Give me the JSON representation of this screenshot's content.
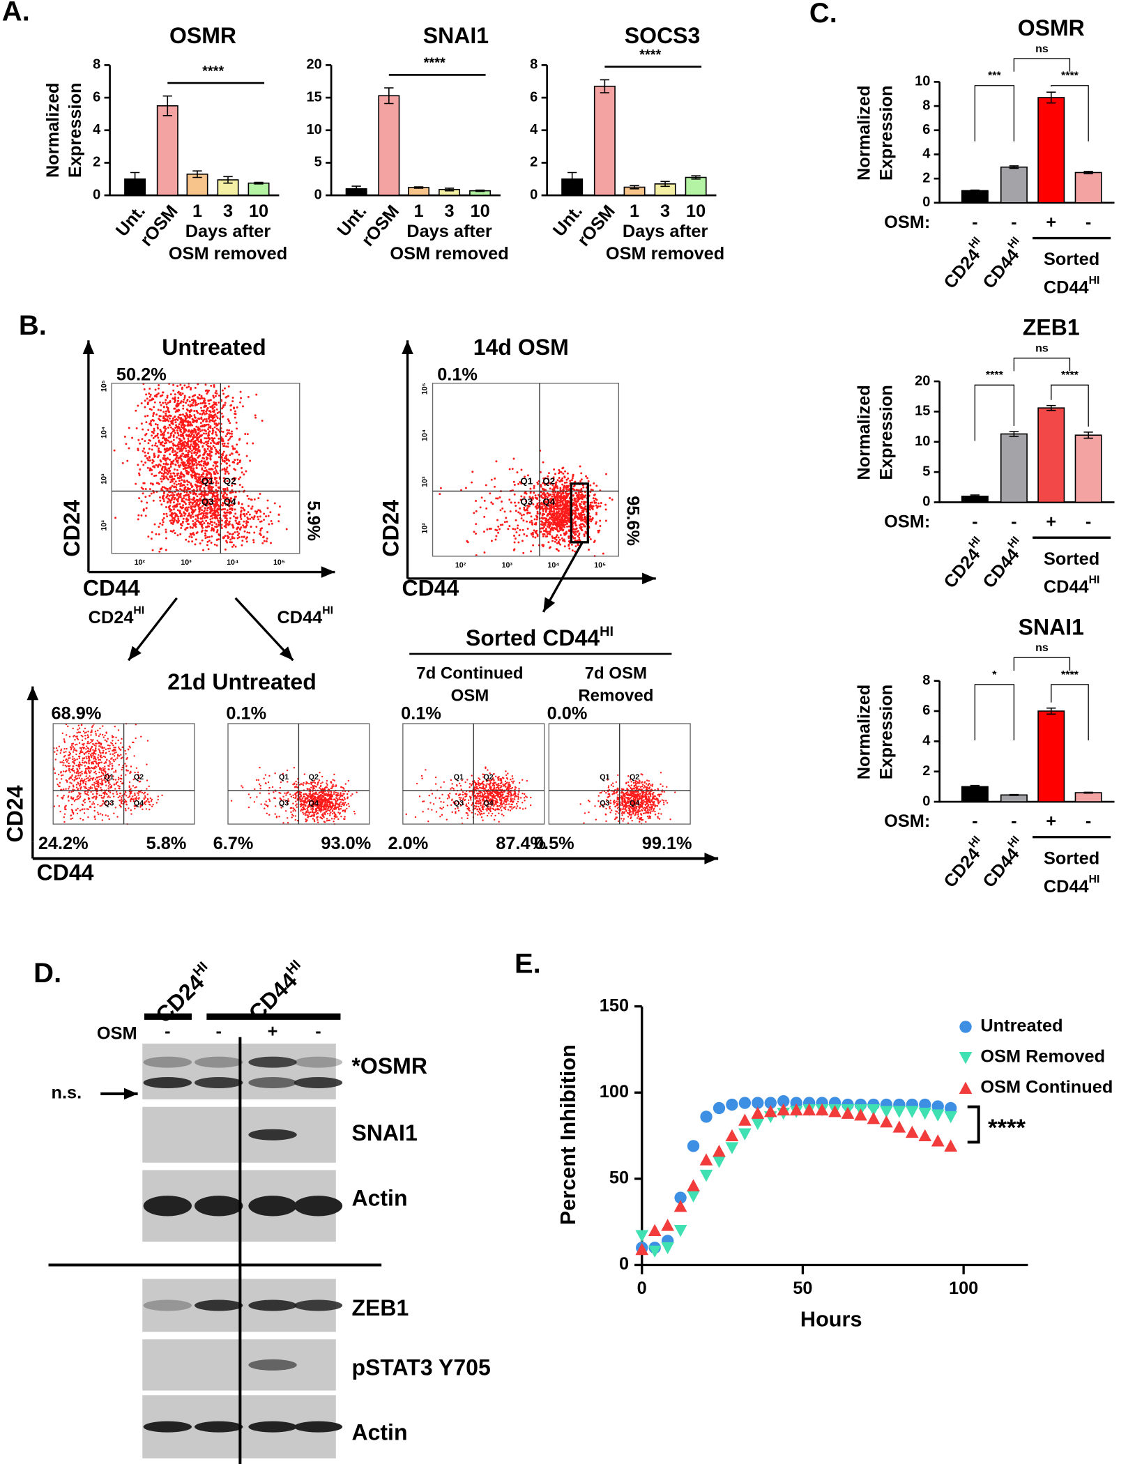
{
  "panel_labels": {
    "A": "A.",
    "B": "B.",
    "C": "C.",
    "D": "D.",
    "E": "E."
  },
  "chart_data": [
    {
      "type": "bar",
      "title": "OSMR",
      "ylabel": [
        "Normalized",
        "Expression"
      ],
      "categories": [
        "Unt.",
        "rOSM",
        "1",
        "3",
        "10"
      ],
      "group_label": [
        "Days after",
        "OSM removed"
      ],
      "values": [
        1.0,
        5.5,
        1.3,
        0.95,
        0.75
      ],
      "errors": [
        0.4,
        0.6,
        0.2,
        0.2,
        0.05
      ],
      "colors": [
        "#000000",
        "#f4a3a3",
        "#f7c48c",
        "#f3f0a6",
        "#b4f2a4"
      ],
      "ylim": [
        0,
        8
      ],
      "yticks": [
        0,
        2,
        4,
        6,
        8
      ],
      "comparisons": [
        {
          "from": 1,
          "to": 4,
          "label": "****"
        }
      ]
    },
    {
      "type": "bar",
      "title": "SNAI1",
      "categories": [
        "Unt.",
        "rOSM",
        "1",
        "3",
        "10"
      ],
      "group_label": [
        "Days after",
        "OSM removed"
      ],
      "values": [
        1.0,
        15.3,
        1.2,
        0.9,
        0.7
      ],
      "errors": [
        0.4,
        1.2,
        0.1,
        0.2,
        0.1
      ],
      "colors": [
        "#000000",
        "#f4a3a3",
        "#f7c48c",
        "#f3f0a6",
        "#b4f2a4"
      ],
      "ylim": [
        0,
        20
      ],
      "yticks": [
        0,
        5,
        10,
        15,
        20
      ],
      "comparisons": [
        {
          "from": 1,
          "to": 4,
          "label": "****"
        }
      ]
    },
    {
      "type": "bar",
      "title": "SOCS3",
      "categories": [
        "Unt.",
        "rOSM",
        "1",
        "3",
        "10"
      ],
      "group_label": [
        "Days after",
        "OSM removed"
      ],
      "values": [
        1.0,
        6.7,
        0.5,
        0.7,
        1.1
      ],
      "errors": [
        0.4,
        0.4,
        0.1,
        0.15,
        0.1
      ],
      "colors": [
        "#000000",
        "#f4a3a3",
        "#f7c48c",
        "#f3f0a6",
        "#b4f2a4"
      ],
      "ylim": [
        0,
        8
      ],
      "yticks": [
        0,
        2,
        4,
        6,
        8
      ],
      "comparisons": [
        {
          "from": 1,
          "to": 4,
          "label": "****"
        }
      ]
    },
    {
      "type": "bar",
      "title": "OSMR",
      "ylabel": [
        "Normalized",
        "Expression"
      ],
      "categories": [
        [
          "CD24",
          "HI"
        ],
        [
          "CD44",
          "HI"
        ],
        null,
        null
      ],
      "treatment_label": "OSM:",
      "treatment": [
        "-",
        "-",
        "+",
        "-"
      ],
      "group_label": [
        "Sorted",
        [
          "CD44",
          "HI"
        ]
      ],
      "values": [
        1.0,
        2.95,
        8.7,
        2.5
      ],
      "errors": [
        0.05,
        0.1,
        0.45,
        0.1
      ],
      "colors": [
        "#000000",
        "#a3a3a8",
        "#ff0000",
        "#f4a3a3"
      ],
      "ylim": [
        0,
        10
      ],
      "yticks": [
        0,
        2,
        4,
        6,
        8,
        10
      ],
      "comparisons": [
        {
          "from": 0,
          "to": 1,
          "label": "***"
        },
        {
          "from": 2,
          "to": 3,
          "label": "****"
        },
        {
          "from": 1,
          "to": 2.5,
          "label": "ns"
        }
      ]
    },
    {
      "type": "bar",
      "title": "ZEB1",
      "ylabel": [
        "Normalized",
        "Expression"
      ],
      "categories": [
        [
          "CD24",
          "HI"
        ],
        [
          "CD44",
          "HI"
        ],
        null,
        null
      ],
      "treatment_label": "OSM:",
      "treatment": [
        "-",
        "-",
        "+",
        "-"
      ],
      "group_label": [
        "Sorted",
        [
          "CD44",
          "HI"
        ]
      ],
      "values": [
        1.0,
        11.3,
        15.6,
        11.1
      ],
      "errors": [
        0.2,
        0.4,
        0.4,
        0.5
      ],
      "colors": [
        "#000000",
        "#a3a3a8",
        "#f24848",
        "#f4a3a3"
      ],
      "ylim": [
        0,
        20
      ],
      "yticks": [
        0,
        5,
        10,
        15,
        20
      ],
      "comparisons": [
        {
          "from": 0,
          "to": 1,
          "label": "****"
        },
        {
          "from": 2,
          "to": 3,
          "label": "****"
        },
        {
          "from": 1,
          "to": 2.5,
          "label": "ns"
        }
      ]
    },
    {
      "type": "bar",
      "title": "SNAI1",
      "ylabel": [
        "Normalized",
        "Expression"
      ],
      "categories": [
        [
          "CD24",
          "HI"
        ],
        [
          "CD44",
          "HI"
        ],
        null,
        null
      ],
      "treatment_label": "OSM:",
      "treatment": [
        "-",
        "-",
        "+",
        "-"
      ],
      "group_label": [
        "Sorted",
        [
          "CD44",
          "HI"
        ]
      ],
      "values": [
        1.0,
        0.45,
        6.0,
        0.6
      ],
      "errors": [
        0.08,
        0.03,
        0.2,
        0.03
      ],
      "colors": [
        "#000000",
        "#a3a3a8",
        "#ff0000",
        "#f4a3a3"
      ],
      "ylim": [
        0,
        8
      ],
      "yticks": [
        0,
        2,
        4,
        6,
        8
      ],
      "comparisons": [
        {
          "from": 0,
          "to": 1,
          "label": "*"
        },
        {
          "from": 2,
          "to": 3,
          "label": "****"
        },
        {
          "from": 1,
          "to": 2.5,
          "label": "ns"
        }
      ]
    },
    {
      "type": "scatter",
      "xlabel": "Hours",
      "ylabel": "Percent Inhibition",
      "xlim": [
        0,
        120
      ],
      "xticks": [
        0,
        50,
        100
      ],
      "ylim": [
        0,
        150
      ],
      "yticks": [
        0,
        50,
        100,
        150
      ],
      "annotation": "****",
      "x": [
        0,
        4,
        8,
        12,
        16,
        20,
        24,
        28,
        32,
        36,
        40,
        44,
        48,
        52,
        56,
        60,
        64,
        68,
        72,
        76,
        80,
        84,
        88,
        92,
        96
      ],
      "series": [
        {
          "name": "Untreated",
          "color": "#3d8fe3",
          "marker": "circle",
          "values": [
            10,
            10,
            14,
            39,
            69,
            86,
            91,
            93,
            94,
            94,
            94,
            95,
            94,
            94,
            94,
            94,
            93,
            93,
            93,
            93,
            93,
            93,
            93,
            92,
            91
          ]
        },
        {
          "name": "OSM Removed",
          "color": "#3fe0b2",
          "marker": "triangle-down",
          "values": [
            17,
            8,
            10,
            20,
            40,
            52,
            60,
            68,
            76,
            82,
            86,
            88,
            89,
            90,
            90,
            90,
            90,
            90,
            90,
            89,
            89,
            89,
            88,
            87,
            86
          ]
        },
        {
          "name": "OSM Continued",
          "color": "#f23c3c",
          "marker": "triangle-up",
          "values": [
            9,
            20,
            23,
            34,
            46,
            61,
            66,
            75,
            84,
            88,
            89,
            90,
            90,
            90,
            90,
            89,
            88,
            87,
            85,
            83,
            80,
            77,
            75,
            72,
            69
          ]
        }
      ]
    }
  ],
  "flow": {
    "axis_x": "CD44",
    "axis_y": "CD24",
    "ticks": [
      "10²",
      "10³",
      "10⁴",
      "10⁵"
    ],
    "quadrants": [
      "Q1",
      "Q2",
      "Q3",
      "Q4"
    ],
    "plots": [
      {
        "title": "Untreated",
        "top_left": "50.2%",
        "right": "5.9%"
      },
      {
        "title": "14d OSM",
        "top_left": "0.1%",
        "right": "95.6%"
      }
    ],
    "gates": [
      [
        "CD24",
        "HI"
      ],
      [
        "CD44",
        "HI"
      ]
    ],
    "bottom_title": "21d Untreated",
    "sorted_title": [
      "Sorted CD44",
      "HI"
    ],
    "bottom_plots": [
      {
        "top_left": "68.9%",
        "bottom_left": "24.2%",
        "bottom_right": "5.8%"
      },
      {
        "top_left": "0.1%",
        "bottom_left": "6.7%",
        "bottom_right": "93.0%"
      },
      {
        "title": [
          "7d Continued",
          "OSM"
        ],
        "top_left": "0.1%",
        "bottom_left": "2.0%",
        "bottom_right": "87.4%"
      },
      {
        "title": [
          "7d OSM",
          "Removed"
        ],
        "top_left": "0.0%",
        "bottom_left": "0.5%",
        "bottom_right": "99.1%"
      }
    ]
  },
  "blot": {
    "groups": [
      [
        "CD24",
        "HI"
      ],
      [
        "CD44",
        "HI"
      ]
    ],
    "treatment_label": "OSM",
    "treatment": [
      "-",
      "-",
      "+",
      "-"
    ],
    "nonspecific": "n.s.",
    "bands": [
      "*OSMR",
      "SNAI1",
      "Actin",
      "ZEB1",
      "pSTAT3 Y705",
      "Actin"
    ]
  }
}
